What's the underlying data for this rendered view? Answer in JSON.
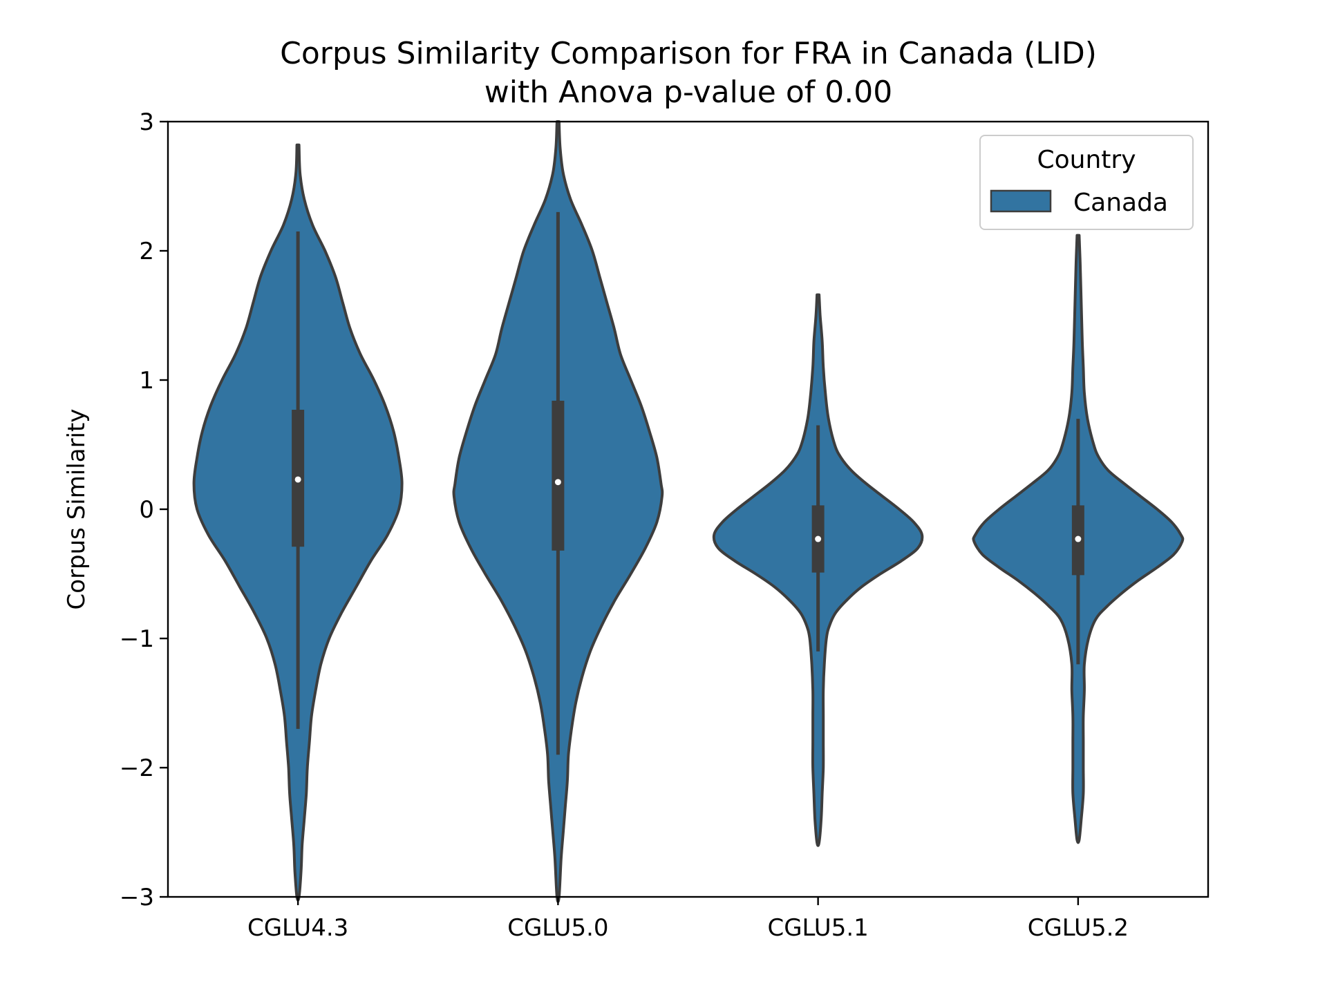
{
  "chart_data": {
    "type": "violin",
    "title_line1": "Corpus Similarity Comparison for FRA in Canada (LID)",
    "title_line2": "with Anova p-value of 0.00",
    "xlabel": "",
    "ylabel": "Corpus Similarity",
    "ylim": [
      -3,
      3
    ],
    "yticks": [
      3,
      2,
      1,
      0,
      -1,
      -2,
      -3
    ],
    "ytick_labels": [
      "3",
      "2",
      "1",
      "0",
      "−1",
      "−2",
      "−3"
    ],
    "categories": [
      "CGLU4.3",
      "CGLU5.0",
      "CGLU5.1",
      "CGLU5.2"
    ],
    "legend": {
      "title": "Country",
      "entries": [
        "Canada"
      ],
      "placement": "top-right"
    },
    "colors": {
      "fill": "#3274a1",
      "edge": "#3d3d3d",
      "median": "#ffffff"
    },
    "series": [
      {
        "name": "Canada",
        "violins": [
          {
            "category": "CGLU4.3",
            "median": 0.23,
            "q1": -0.29,
            "q3": 0.77,
            "whisker_low": -1.7,
            "whisker_high": 2.15,
            "min": -3.0,
            "max": 2.82,
            "density": [
              [
                2.82,
                0.01
              ],
              [
                2.6,
                0.02
              ],
              [
                2.4,
                0.06
              ],
              [
                2.2,
                0.14
              ],
              [
                2.0,
                0.26
              ],
              [
                1.8,
                0.36
              ],
              [
                1.6,
                0.43
              ],
              [
                1.4,
                0.5
              ],
              [
                1.2,
                0.6
              ],
              [
                1.0,
                0.73
              ],
              [
                0.8,
                0.84
              ],
              [
                0.6,
                0.92
              ],
              [
                0.4,
                0.97
              ],
              [
                0.2,
                1.0
              ],
              [
                0.0,
                0.97
              ],
              [
                -0.2,
                0.86
              ],
              [
                -0.4,
                0.7
              ],
              [
                -0.6,
                0.56
              ],
              [
                -0.8,
                0.42
              ],
              [
                -1.0,
                0.3
              ],
              [
                -1.2,
                0.22
              ],
              [
                -1.4,
                0.17
              ],
              [
                -1.6,
                0.13
              ],
              [
                -1.8,
                0.11
              ],
              [
                -2.0,
                0.09
              ],
              [
                -2.2,
                0.08
              ],
              [
                -2.4,
                0.06
              ],
              [
                -2.6,
                0.04
              ],
              [
                -2.8,
                0.03
              ],
              [
                -3.0,
                0.01
              ]
            ]
          },
          {
            "category": "CGLU5.0",
            "median": 0.21,
            "q1": -0.32,
            "q3": 0.84,
            "whisker_low": -1.9,
            "whisker_high": 2.3,
            "min": -3.0,
            "max": 3.0,
            "density": [
              [
                3.0,
                0.01
              ],
              [
                2.8,
                0.02
              ],
              [
                2.6,
                0.05
              ],
              [
                2.4,
                0.12
              ],
              [
                2.2,
                0.23
              ],
              [
                2.0,
                0.33
              ],
              [
                1.8,
                0.4
              ],
              [
                1.6,
                0.47
              ],
              [
                1.4,
                0.54
              ],
              [
                1.2,
                0.6
              ],
              [
                1.0,
                0.7
              ],
              [
                0.8,
                0.8
              ],
              [
                0.6,
                0.88
              ],
              [
                0.4,
                0.95
              ],
              [
                0.2,
                0.99
              ],
              [
                0.1,
                1.0
              ],
              [
                -0.1,
                0.95
              ],
              [
                -0.3,
                0.84
              ],
              [
                -0.5,
                0.7
              ],
              [
                -0.7,
                0.55
              ],
              [
                -0.9,
                0.42
              ],
              [
                -1.1,
                0.31
              ],
              [
                -1.3,
                0.23
              ],
              [
                -1.5,
                0.17
              ],
              [
                -1.7,
                0.13
              ],
              [
                -1.9,
                0.1
              ],
              [
                -2.1,
                0.09
              ],
              [
                -2.3,
                0.07
              ],
              [
                -2.5,
                0.05
              ],
              [
                -2.7,
                0.03
              ],
              [
                -3.0,
                0.01
              ]
            ]
          },
          {
            "category": "CGLU5.1",
            "median": -0.23,
            "q1": -0.49,
            "q3": 0.03,
            "whisker_low": -1.1,
            "whisker_high": 0.65,
            "min": -2.58,
            "max": 1.66,
            "density": [
              [
                1.66,
                0.01
              ],
              [
                1.5,
                0.02
              ],
              [
                1.3,
                0.04
              ],
              [
                1.1,
                0.05
              ],
              [
                0.9,
                0.07
              ],
              [
                0.7,
                0.1
              ],
              [
                0.5,
                0.16
              ],
              [
                0.4,
                0.22
              ],
              [
                0.3,
                0.32
              ],
              [
                0.2,
                0.46
              ],
              [
                0.1,
                0.62
              ],
              [
                0.0,
                0.78
              ],
              [
                -0.1,
                0.92
              ],
              [
                -0.2,
                1.0
              ],
              [
                -0.3,
                0.96
              ],
              [
                -0.4,
                0.8
              ],
              [
                -0.5,
                0.6
              ],
              [
                -0.6,
                0.42
              ],
              [
                -0.7,
                0.28
              ],
              [
                -0.8,
                0.17
              ],
              [
                -0.9,
                0.11
              ],
              [
                -1.0,
                0.08
              ],
              [
                -1.2,
                0.06
              ],
              [
                -1.4,
                0.05
              ],
              [
                -1.6,
                0.05
              ],
              [
                -1.8,
                0.05
              ],
              [
                -2.0,
                0.05
              ],
              [
                -2.2,
                0.04
              ],
              [
                -2.4,
                0.03
              ],
              [
                -2.58,
                0.01
              ]
            ]
          },
          {
            "category": "CGLU5.2",
            "median": -0.23,
            "q1": -0.51,
            "q3": 0.03,
            "whisker_low": -1.2,
            "whisker_high": 0.7,
            "min": -2.56,
            "max": 2.12,
            "density": [
              [
                2.12,
                0.01
              ],
              [
                1.9,
                0.02
              ],
              [
                1.6,
                0.03
              ],
              [
                1.3,
                0.04
              ],
              [
                1.1,
                0.05
              ],
              [
                0.9,
                0.06
              ],
              [
                0.7,
                0.09
              ],
              [
                0.5,
                0.15
              ],
              [
                0.4,
                0.2
              ],
              [
                0.3,
                0.29
              ],
              [
                0.2,
                0.44
              ],
              [
                0.1,
                0.6
              ],
              [
                0.0,
                0.76
              ],
              [
                -0.1,
                0.9
              ],
              [
                -0.2,
                0.99
              ],
              [
                -0.25,
                1.0
              ],
              [
                -0.35,
                0.92
              ],
              [
                -0.45,
                0.76
              ],
              [
                -0.55,
                0.58
              ],
              [
                -0.65,
                0.42
              ],
              [
                -0.75,
                0.28
              ],
              [
                -0.85,
                0.17
              ],
              [
                -1.0,
                0.1
              ],
              [
                -1.2,
                0.06
              ],
              [
                -1.4,
                0.06
              ],
              [
                -1.6,
                0.05
              ],
              [
                -1.8,
                0.05
              ],
              [
                -2.0,
                0.05
              ],
              [
                -2.2,
                0.05
              ],
              [
                -2.4,
                0.03
              ],
              [
                -2.56,
                0.01
              ]
            ]
          }
        ]
      }
    ]
  }
}
